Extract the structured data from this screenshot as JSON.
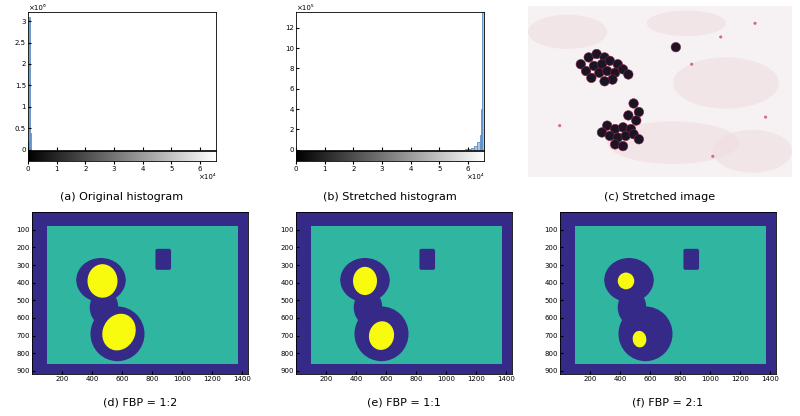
{
  "chart_data": [
    {
      "type": "histogram",
      "caption": "(a) Original histogram",
      "bins": [
        0,
        0.03,
        0.06,
        0.09,
        0.12
      ],
      "counts": [
        0.2,
        3.1,
        0.4,
        0.05
      ],
      "color": "#a9c6e3",
      "xlim": [
        0,
        6.5535
      ],
      "xticks": [
        0,
        1,
        2,
        3,
        4,
        5,
        6
      ],
      "ylim": [
        0,
        3.2
      ],
      "yticks": [
        0,
        0.5,
        1,
        1.5,
        2,
        2.5,
        3
      ],
      "x_multiplier": "×10⁴",
      "y_multiplier": "×10⁶"
    },
    {
      "type": "histogram",
      "caption": "(b) Stretched histogram",
      "bins": [
        5.9,
        6.0,
        6.1,
        6.2,
        6.3,
        6.4,
        6.45,
        6.5,
        6.5535
      ],
      "counts": [
        0.05,
        0.1,
        0.2,
        0.4,
        0.8,
        1.5,
        4,
        14
      ],
      "color": "#a9c6e3",
      "xlim": [
        0,
        6.5535
      ],
      "xticks": [
        0,
        1,
        2,
        3,
        4,
        5,
        6
      ],
      "ylim": [
        0,
        13.5
      ],
      "yticks": [
        0,
        2,
        4,
        6,
        8,
        10,
        12
      ],
      "x_multiplier": "×10⁴",
      "y_multiplier": "×10⁵"
    },
    {
      "type": "image",
      "caption": "(c) Stretched image"
    },
    {
      "type": "segmentation",
      "caption": "(d) FBP = 1:2",
      "colors": [
        "#352a87",
        "#2fb5a0",
        "#f9fb0e"
      ],
      "xlim": [
        0,
        1440
      ],
      "ylim": [
        920,
        0
      ],
      "xticks": [
        200,
        400,
        600,
        800,
        1000,
        1200,
        1400
      ],
      "yticks": [
        100,
        200,
        300,
        400,
        500,
        600,
        700,
        800,
        900
      ]
    },
    {
      "type": "segmentation",
      "caption": "(e) FBP = 1:1",
      "colors": [
        "#352a87",
        "#2fb5a0",
        "#f9fb0e"
      ],
      "xlim": [
        0,
        1440
      ],
      "ylim": [
        920,
        0
      ],
      "xticks": [
        200,
        400,
        600,
        800,
        1000,
        1200,
        1400
      ],
      "yticks": [
        100,
        200,
        300,
        400,
        500,
        600,
        700,
        800,
        900
      ]
    },
    {
      "type": "segmentation",
      "caption": "(f) FBP = 2:1",
      "colors": [
        "#352a87",
        "#2fb5a0",
        "#f9fb0e"
      ],
      "xlim": [
        0,
        1440
      ],
      "ylim": [
        920,
        0
      ],
      "xticks": [
        200,
        400,
        600,
        800,
        1000,
        1200,
        1400
      ],
      "yticks": [
        100,
        200,
        300,
        400,
        500,
        600,
        700,
        800,
        900
      ]
    }
  ]
}
